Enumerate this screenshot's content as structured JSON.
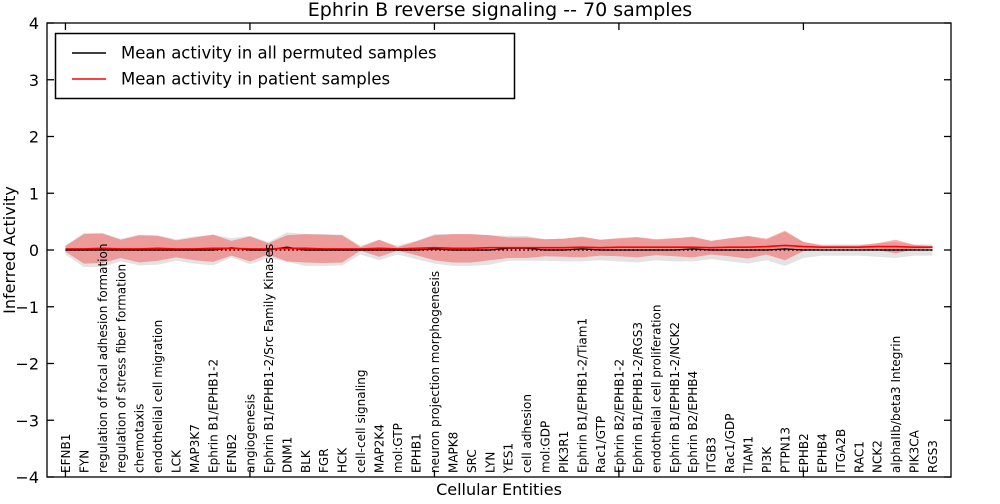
{
  "chart_data": {
    "type": "line",
    "title": "Ephrin B reverse signaling -- 70 samples",
    "xlabel": "Cellular Entities",
    "ylabel": "Inferred Activity",
    "ylim": [
      -4,
      4
    ],
    "grid": false,
    "legend_position": "upper-left",
    "yticks": [
      -4,
      -3,
      -2,
      -1,
      0,
      1,
      2,
      3,
      4
    ],
    "ytick_labels": [
      "−4",
      "−3",
      "−2",
      "−1",
      "0",
      "1",
      "2",
      "3",
      "4"
    ],
    "xticks": [
      0,
      10,
      20,
      30,
      40
    ],
    "zero_line": true,
    "colors": {
      "permuted_line": "#000000",
      "patient_line": "#ff0000",
      "patient_band": "#ff0000",
      "permuted_band": "#999999"
    },
    "categories": [
      "EFNB1",
      "FYN",
      "regulation of focal adhesion formation",
      "regulation of stress fiber formation",
      "chemotaxis",
      "endothelial cell migration",
      "LCK",
      "MAP3K7",
      "Ephrin B1/EPHB1-2",
      "EFNB2",
      "angiogenesis",
      "Ephrin B1/EPHB1-2/Src Family Kinases",
      "DNM1",
      "BLK",
      "FGR",
      "HCK",
      "cell-cell signaling",
      "MAP2K4",
      "mol:GTP",
      "EPHB1",
      "neuron projection morphogenesis",
      "MAPK8",
      "SRC",
      "LYN",
      "YES1",
      "cell adhesion",
      "mol:GDP",
      "PIK3R1",
      "Ephrin B1/EPHB1-2/Tiam1",
      "Rac1/GTP",
      "Ephrin B2/EPHB1-2",
      "Ephrin B1/EPHB1-2/RGS3",
      "endothelial cell proliferation",
      "Ephrin B1/EPHB1-2/NCK2",
      "Ephrin B2/EPHB4",
      "ITGB3",
      "Rac1/GDP",
      "TIAM1",
      "PI3K",
      "PTPN13",
      "EPHB2",
      "EPHB4",
      "ITGA2B",
      "RAC1",
      "NCK2",
      "alphaIIb/beta3 Integrin",
      "PIK3CA",
      "RGS3"
    ],
    "series": [
      {
        "name": "Mean activity in all permuted samples",
        "color": "#000000",
        "values": [
          0,
          0,
          0,
          0,
          0,
          0,
          0,
          0,
          0,
          0.04,
          0,
          0,
          0.05,
          0,
          0,
          0,
          0,
          0,
          0,
          0,
          0.02,
          0,
          0,
          0,
          0.03,
          0.03,
          0,
          0,
          0.02,
          0,
          0,
          0,
          0,
          0,
          0.02,
          0,
          0,
          0,
          0,
          0.02,
          0,
          0,
          0,
          0,
          0,
          0,
          0,
          0
        ]
      },
      {
        "name": "Mean activity in patient samples",
        "color": "#ff0000",
        "values": [
          0.02,
          0.02,
          0.03,
          0.02,
          0.02,
          0.03,
          0.02,
          0.02,
          0.03,
          0.03,
          0.02,
          0.02,
          0.03,
          0.03,
          0.02,
          0.02,
          0.02,
          0.03,
          0.02,
          0.03,
          0.04,
          0.03,
          0.03,
          0.04,
          0.04,
          0.04,
          0.04,
          0.04,
          0.05,
          0.04,
          0.05,
          0.05,
          0.05,
          0.05,
          0.05,
          0.04,
          0.05,
          0.05,
          0.06,
          0.08,
          0.06,
          0.05,
          0.05,
          0.05,
          0.06,
          0.06,
          0.05,
          0.05
        ]
      }
    ],
    "bands": [
      {
        "name": "permuted samples std band",
        "series_index": 0,
        "color": "#999999",
        "opacity": 0.28,
        "halfwidths": [
          0.08,
          0.3,
          0.3,
          0.2,
          0.27,
          0.26,
          0.19,
          0.24,
          0.27,
          0.17,
          0.25,
          0.14,
          0.26,
          0.28,
          0.28,
          0.27,
          0.08,
          0.18,
          0.08,
          0.16,
          0.26,
          0.28,
          0.28,
          0.26,
          0.22,
          0.22,
          0.19,
          0.2,
          0.22,
          0.18,
          0.2,
          0.22,
          0.18,
          0.2,
          0.22,
          0.16,
          0.2,
          0.24,
          0.18,
          0.3,
          0.14,
          0.1,
          0.1,
          0.1,
          0.12,
          0.14,
          0.1,
          0.1
        ]
      },
      {
        "name": "patient samples std band",
        "series_index": 1,
        "color": "#ff0000",
        "opacity": 0.32,
        "halfwidths": [
          0.05,
          0.26,
          0.26,
          0.16,
          0.24,
          0.22,
          0.15,
          0.2,
          0.24,
          0.13,
          0.22,
          0.1,
          0.23,
          0.25,
          0.25,
          0.24,
          0.03,
          0.15,
          0.03,
          0.12,
          0.22,
          0.25,
          0.25,
          0.22,
          0.18,
          0.18,
          0.15,
          0.16,
          0.18,
          0.14,
          0.16,
          0.18,
          0.14,
          0.16,
          0.18,
          0.12,
          0.16,
          0.2,
          0.14,
          0.26,
          0.08,
          0.03,
          0.03,
          0.03,
          0.06,
          0.12,
          0.04,
          0.02
        ]
      }
    ]
  }
}
